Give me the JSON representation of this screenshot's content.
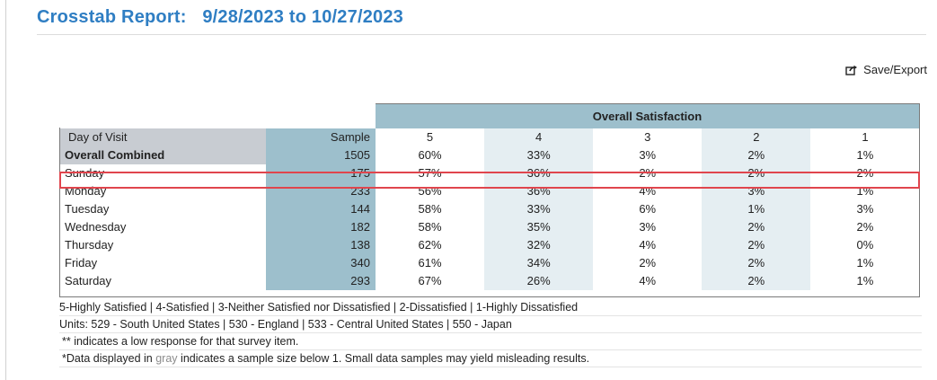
{
  "report": {
    "title": "Crosstab Report:",
    "date_range": "9/28/2023 to 10/27/2023"
  },
  "actions": {
    "save_export": "Save/Export"
  },
  "table": {
    "group_header": "Overall Satisfaction",
    "columns": {
      "dimension": "Day of Visit",
      "sample": "Sample",
      "scores": [
        "5",
        "4",
        "3",
        "2",
        "1"
      ]
    },
    "rows": [
      {
        "label": "Overall Combined",
        "sample": "1505",
        "values": [
          "60%",
          "33%",
          "3%",
          "2%",
          "1%"
        ]
      },
      {
        "label": "Sunday",
        "sample": "175",
        "values": [
          "57%",
          "36%",
          "2%",
          "2%",
          "2%"
        ]
      },
      {
        "label": "Monday",
        "sample": "233",
        "values": [
          "56%",
          "36%",
          "4%",
          "3%",
          "1%"
        ]
      },
      {
        "label": "Tuesday",
        "sample": "144",
        "values": [
          "58%",
          "33%",
          "6%",
          "1%",
          "3%"
        ]
      },
      {
        "label": "Wednesday",
        "sample": "182",
        "values": [
          "58%",
          "35%",
          "3%",
          "2%",
          "2%"
        ]
      },
      {
        "label": "Thursday",
        "sample": "138",
        "values": [
          "62%",
          "32%",
          "4%",
          "2%",
          "0%"
        ]
      },
      {
        "label": "Friday",
        "sample": "340",
        "values": [
          "61%",
          "34%",
          "2%",
          "2%",
          "1%"
        ]
      },
      {
        "label": "Saturday",
        "sample": "293",
        "values": [
          "67%",
          "26%",
          "4%",
          "2%",
          "1%"
        ]
      }
    ],
    "highlighted_row": "Sunday"
  },
  "notes": {
    "scale_legend": "5-Highly Satisfied | 4-Satisfied | 3-Neither Satisfied nor Dissatisfied | 2-Dissatisfied | 1-Highly Dissatisfied",
    "units": "Units: 529 - South United States | 530 - England | 533 - Central United States | 550 - Japan",
    "low_response_marker": "**",
    "low_response_text": " indicates a low response for that survey item.",
    "gray_note_prefix": "*Data displayed in ",
    "gray_word": "gray",
    "gray_note_suffix": " indicates a sample size below 1. Small data samples may yield misleading results."
  },
  "colors": {
    "title": "#2f7ec3",
    "sample_column": "#9dbfcc",
    "dimension_header": "#c8ccd2",
    "alternate_column": "#e5eef2",
    "highlight_border": "#e0454d"
  },
  "icons": {
    "save_export": "share-export-icon"
  }
}
